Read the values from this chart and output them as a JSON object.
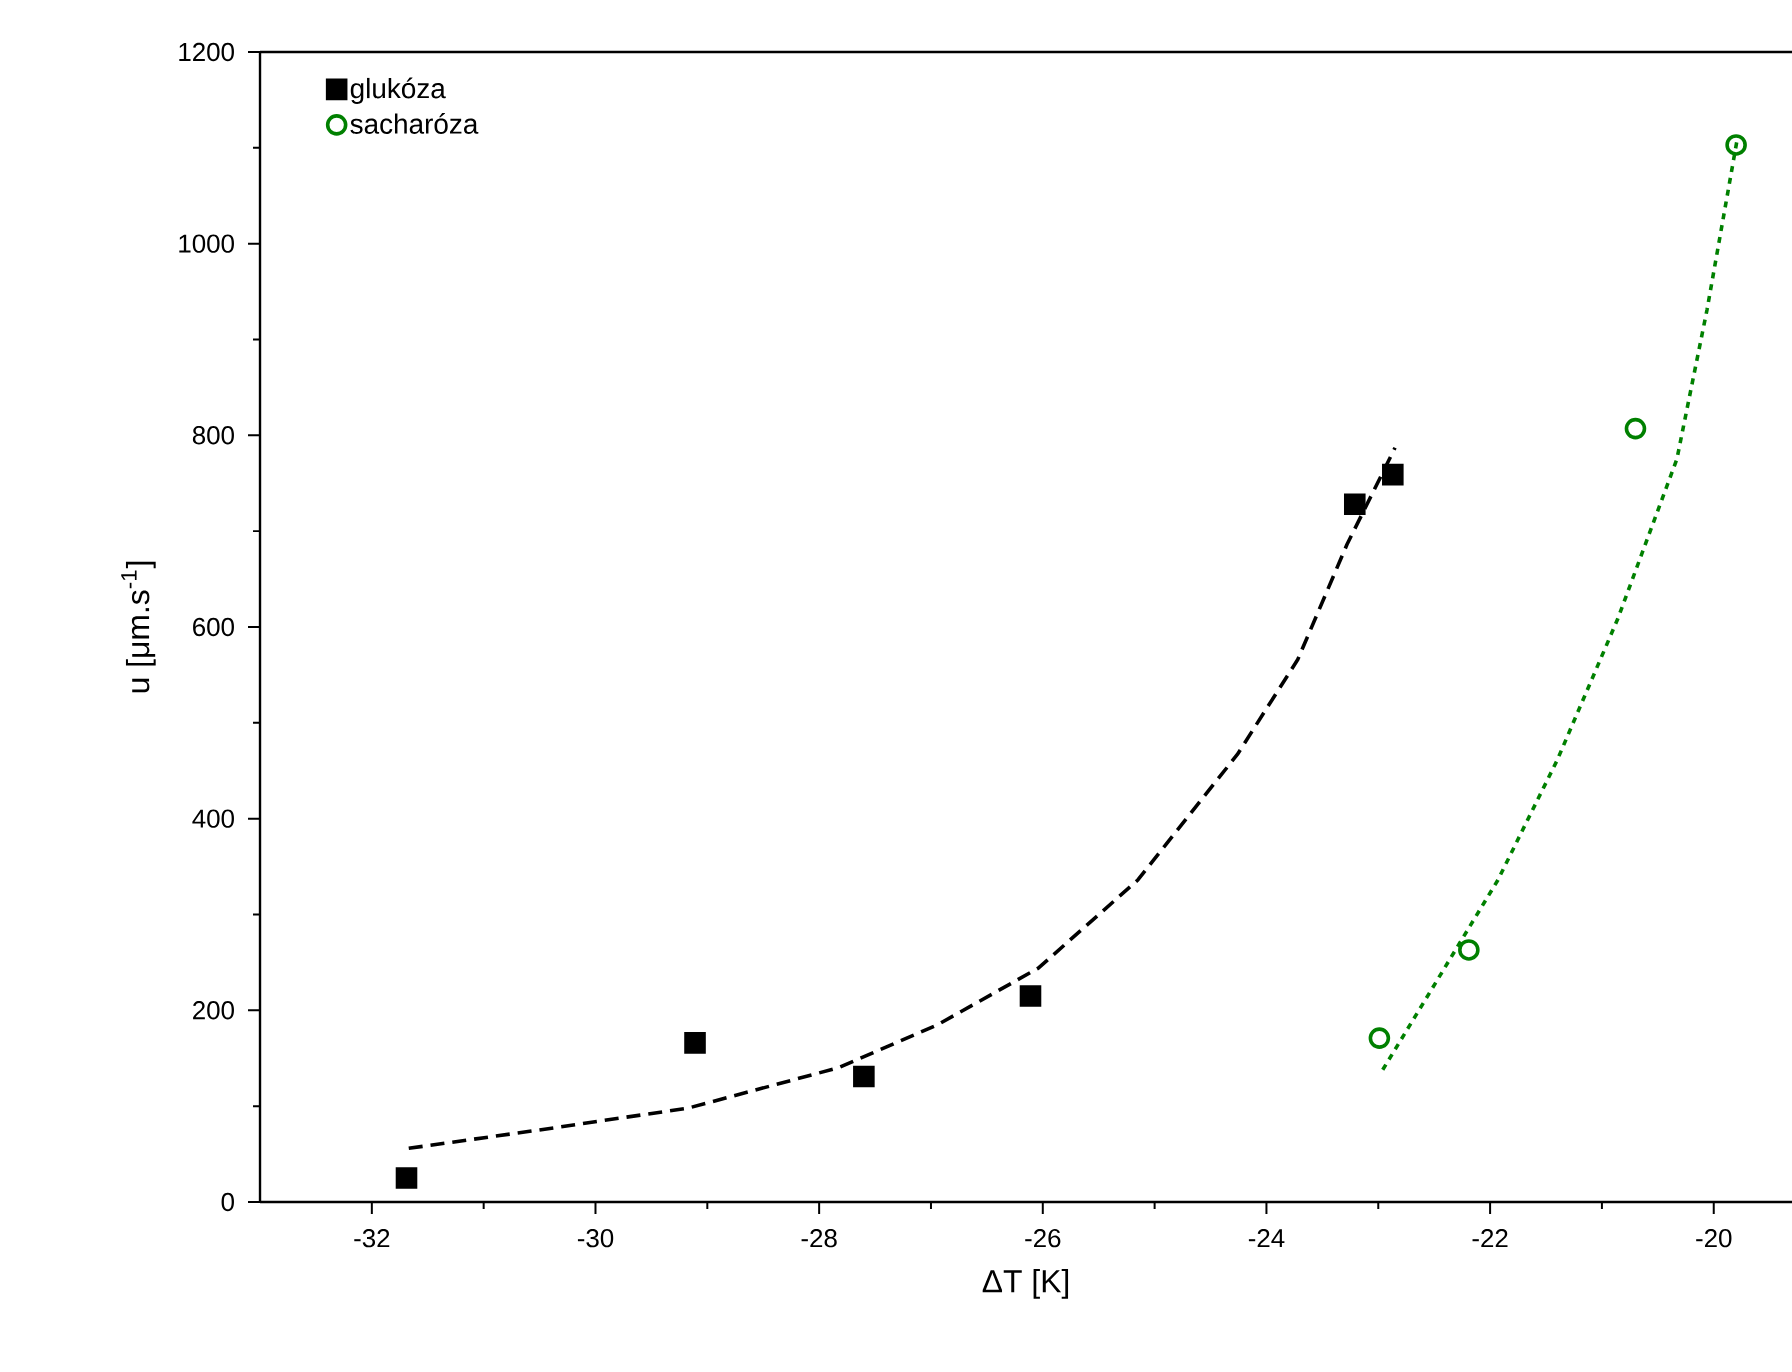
{
  "chart_data": {
    "type": "scatter",
    "xlabel": "ΔT [K]",
    "ylabel": "u [μm.s$^{-1}$]",
    "xlim": [
      -33,
      -19.3
    ],
    "xticks": [
      -32,
      -30,
      -28,
      -26,
      -24,
      -22,
      -20
    ],
    "ylim": [
      0,
      1200
    ],
    "yticks": [
      0,
      200,
      400,
      600,
      800,
      1000,
      1200
    ],
    "grid": false,
    "legend": "top left",
    "series": [
      {
        "name": "glukóza",
        "marker": "square",
        "color": "#000000",
        "x": [
          -31.69,
          -29.11,
          -27.6,
          -26.11,
          -23.21,
          -22.87
        ],
        "values": [
          25,
          166,
          131,
          215,
          728,
          759
        ]
      },
      {
        "name": "sacharóza",
        "marker": "circle",
        "color": "#008000",
        "x": [
          -22.99,
          -22.19,
          -20.7,
          -19.8
        ],
        "values": [
          171,
          263,
          807,
          1103
        ]
      },
      {
        "type": "line",
        "line_style": "dashed",
        "color": "#000000",
        "x": [
          -31.67,
          -30.51,
          -29.17,
          -27.83,
          -26.94,
          -26.04,
          -25.15,
          -24.26,
          -23.72,
          -23.28,
          -22.85
        ],
        "values": [
          56,
          75,
          98,
          140,
          185,
          244,
          336,
          467,
          566,
          686,
          787
        ]
      },
      {
        "type": "line",
        "line_style": "dotted",
        "color": "#008000",
        "x": [
          -22.96,
          -22.47,
          -21.93,
          -21.4,
          -20.86,
          -20.33,
          -20.06,
          -19.79
        ],
        "values": [
          138,
          232,
          336,
          461,
          608,
          775,
          931,
          1109
        ]
      }
    ]
  }
}
